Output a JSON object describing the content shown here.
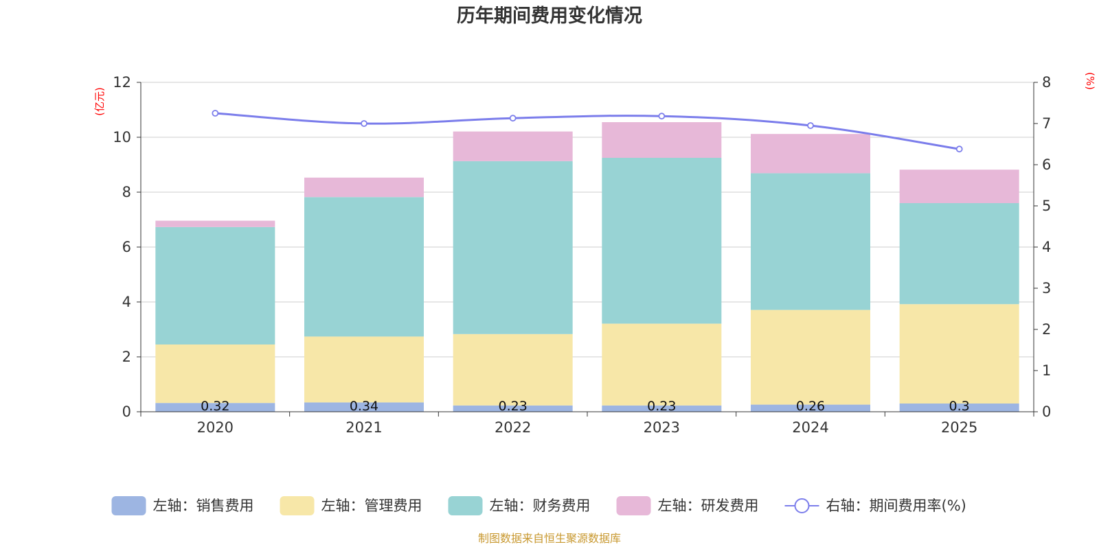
{
  "chart_data": {
    "type": "bar",
    "title": "历年期间费用变化情况",
    "categories": [
      "2020",
      "2021",
      "2022",
      "2023",
      "2024",
      "2025"
    ],
    "y_left": {
      "label": "(亿元)",
      "ylim": [
        0,
        12
      ],
      "ticks": [
        "0",
        "2",
        "4",
        "6",
        "8",
        "10",
        "12"
      ]
    },
    "y_right": {
      "label": "(%)",
      "ylim": [
        0,
        8
      ],
      "ticks": [
        "0",
        "1",
        "2",
        "3",
        "4",
        "5",
        "6",
        "7",
        "8"
      ]
    },
    "series": [
      {
        "name": "左轴：销售费用",
        "type": "bar",
        "stack": true,
        "axis": "left",
        "color": "#9db5e2",
        "values": [
          0.32,
          0.34,
          0.23,
          0.23,
          0.26,
          0.3
        ],
        "labels": [
          "0.32",
          "0.34",
          "0.23",
          "0.23",
          "0.26",
          "0.3"
        ]
      },
      {
        "name": "左轴：管理费用",
        "type": "bar",
        "stack": true,
        "axis": "left",
        "color": "#f7e7a8",
        "values": [
          2.13,
          2.4,
          2.6,
          2.98,
          3.45,
          3.62
        ]
      },
      {
        "name": "左轴：财务费用",
        "type": "bar",
        "stack": true,
        "axis": "left",
        "color": "#98d3d4",
        "values": [
          4.28,
          5.08,
          6.3,
          6.04,
          4.98,
          3.68
        ]
      },
      {
        "name": "左轴：研发费用",
        "type": "bar",
        "stack": true,
        "axis": "left",
        "color": "#e7b8d8",
        "values": [
          0.23,
          0.71,
          1.08,
          1.3,
          1.43,
          1.22
        ]
      },
      {
        "name": "右轴：期间费用率(%)",
        "type": "line",
        "axis": "right",
        "color": "#7b7deb",
        "values": [
          7.25,
          7.0,
          7.13,
          7.18,
          6.95,
          6.38
        ]
      }
    ],
    "legend_position": "bottom",
    "grid": true
  },
  "source_note": "制图数据来自恒生聚源数据库"
}
